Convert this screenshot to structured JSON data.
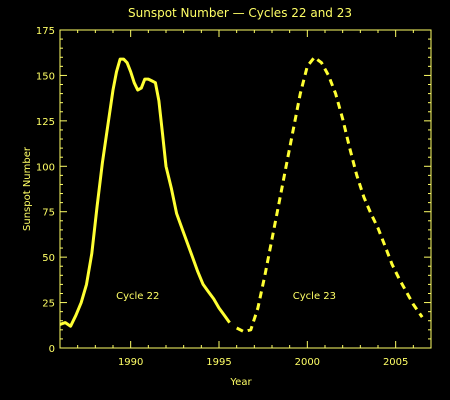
{
  "colors": {
    "background": "#000000",
    "foreground": "#ffff66",
    "series": "#ffff33"
  },
  "chart_data": {
    "type": "line",
    "title": "Sunspot Number — Cycles 22 and 23",
    "xlabel": "Year",
    "ylabel": "Sunspot Number",
    "xlim": [
      1986.0,
      2007.0
    ],
    "ylim": [
      0,
      175
    ],
    "xticks": [
      1990,
      1995,
      2000,
      2005
    ],
    "yticks": [
      0,
      25,
      50,
      75,
      100,
      125,
      150,
      175
    ],
    "grid": false,
    "legend": "none",
    "series": [
      {
        "name": "Cycle 22",
        "line_style": "solid",
        "x": [
          1986.0,
          1986.3,
          1986.6,
          1986.9,
          1987.2,
          1987.5,
          1987.8,
          1988.1,
          1988.4,
          1988.7,
          1989.0,
          1989.2,
          1989.4,
          1989.6,
          1989.8,
          1990.0,
          1990.2,
          1990.4,
          1990.6,
          1990.8,
          1991.0,
          1991.2,
          1991.4,
          1991.6,
          1991.8,
          1992.0,
          1992.3,
          1992.6,
          1992.9,
          1993.2,
          1993.5,
          1993.8,
          1994.1,
          1994.4,
          1994.7,
          1995.0,
          1995.3,
          1995.6
        ],
        "y": [
          13,
          14,
          12,
          18,
          25,
          35,
          52,
          78,
          102,
          122,
          142,
          152,
          159,
          159,
          157,
          152,
          146,
          142,
          143,
          148,
          148,
          147,
          146,
          136,
          118,
          100,
          88,
          74,
          66,
          58,
          50,
          42,
          35,
          31,
          27,
          22,
          18,
          14
        ]
      },
      {
        "name": "Cycle 23",
        "line_style": "dashed",
        "x": [
          1996.0,
          1996.4,
          1996.8,
          1997.2,
          1997.6,
          1998.0,
          1998.4,
          1998.8,
          1999.2,
          1999.6,
          2000.0,
          2000.4,
          2000.8,
          2001.2,
          2001.6,
          2002.0,
          2002.4,
          2002.8,
          2003.2,
          2003.6,
          2004.0,
          2004.4,
          2004.8,
          2005.2,
          2005.6,
          2006.0,
          2006.5
        ],
        "y": [
          11,
          9,
          10,
          22,
          40,
          60,
          80,
          100,
          120,
          140,
          155,
          160,
          157,
          150,
          140,
          126,
          110,
          95,
          83,
          74,
          66,
          56,
          46,
          38,
          31,
          24,
          17
        ]
      }
    ],
    "annotations": [
      {
        "text": "Cycle 22",
        "x": 1990.4,
        "y": 27
      },
      {
        "text": "Cycle 23",
        "x": 2000.4,
        "y": 27
      }
    ]
  }
}
